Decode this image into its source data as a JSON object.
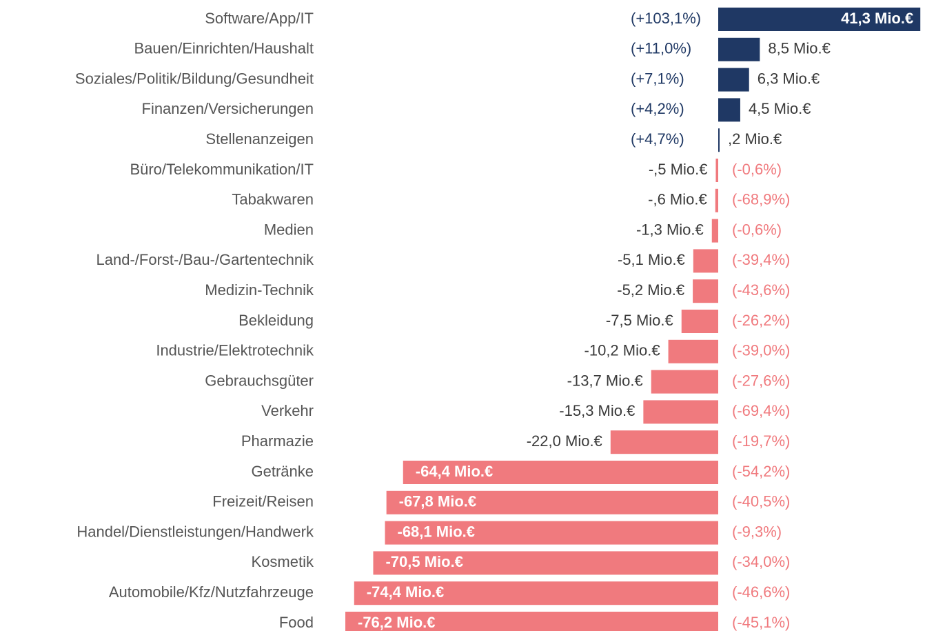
{
  "chart_data": {
    "type": "bar",
    "orientation": "horizontal",
    "positive_color": "#1f3864",
    "negative_color": "#f07a7e",
    "categories": [
      "Software/App/IT",
      "Bauen/Einrichten/Haushalt",
      "Soziales/Politik/Bildung/Gesundheit",
      "Finanzen/Versicherungen",
      "Stellenanzeigen",
      "Büro/Telekommunikation/IT",
      "Tabakwaren",
      "Medien",
      "Land-/Forst-/Bau-/Gartentechnik",
      "Medizin-Technik",
      "Bekleidung",
      "Industrie/Elektrotechnik",
      "Gebrauchsgüter",
      "Verkehr",
      "Pharmazie",
      "Getränke",
      "Freizeit/Reisen",
      "Handel/Dienstleistungen/Handwerk",
      "Kosmetik",
      "Automobile/Kfz/Nutzfahrzeuge",
      "Food"
    ],
    "values": [
      41.3,
      8.5,
      6.3,
      4.5,
      0.2,
      -0.5,
      -0.6,
      -1.3,
      -5.1,
      -5.2,
      -7.5,
      -10.2,
      -13.7,
      -15.3,
      -22.0,
      -64.4,
      -67.8,
      -68.1,
      -70.5,
      -74.4,
      -76.2
    ],
    "value_labels": [
      "41,3 Mio.€",
      "8,5 Mio.€",
      "6,3 Mio.€",
      "4,5 Mio.€",
      ",2 Mio.€",
      "-,5 Mio.€",
      "-,6 Mio.€",
      "-1,3 Mio.€",
      "-5,1 Mio.€",
      "-5,2 Mio.€",
      "-7,5 Mio.€",
      "-10,2 Mio.€",
      "-13,7 Mio.€",
      "-15,3 Mio.€",
      "-22,0 Mio.€",
      "-64,4 Mio.€",
      "-67,8 Mio.€",
      "-68,1 Mio.€",
      "-70,5 Mio.€",
      "-74,4 Mio.€",
      "-76,2 Mio.€"
    ],
    "change_labels": [
      "(+103,1%)",
      "(+11,0%)",
      "(+7,1%)",
      "(+4,2%)",
      "(+4,7%)",
      "(-0,6%)",
      "(-68,9%)",
      "(-0,6%)",
      "(-39,4%)",
      "(-43,6%)",
      "(-26,2%)",
      "(-39,0%)",
      "(-27,6%)",
      "(-69,4%)",
      "(-19,7%)",
      "(-54,2%)",
      "(-40,5%)",
      "(-9,3%)",
      "(-34,0%)",
      "(-46,6%)",
      "(-45,1%)"
    ]
  }
}
